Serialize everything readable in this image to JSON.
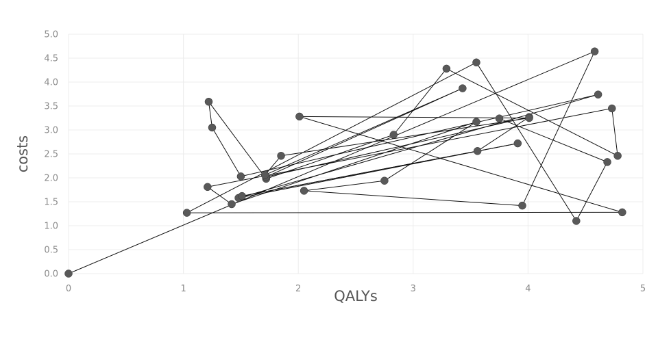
{
  "chart_data": {
    "type": "scatter",
    "title": "",
    "xlabel": "QALYs",
    "ylabel": "costs",
    "xlim": [
      0,
      5
    ],
    "ylim": [
      0,
      5
    ],
    "x_ticks": [
      "0",
      "1",
      "2",
      "3",
      "4",
      "5"
    ],
    "y_ticks": [
      "0.0",
      "0.5",
      "1.0",
      "1.5",
      "2.0",
      "2.5",
      "3.0",
      "3.5",
      "4.0",
      "4.5",
      "5.0"
    ],
    "grid": true,
    "connected_in_order": true,
    "series": [
      {
        "points": [
          {
            "x": 0.0,
            "y": 0.0
          },
          {
            "x": 4.58,
            "y": 4.64
          },
          {
            "x": 3.95,
            "y": 1.42
          },
          {
            "x": 2.05,
            "y": 1.73
          },
          {
            "x": 2.75,
            "y": 1.94
          },
          {
            "x": 3.55,
            "y": 3.17
          },
          {
            "x": 1.42,
            "y": 1.45
          },
          {
            "x": 1.21,
            "y": 1.81
          },
          {
            "x": 4.73,
            "y": 3.45
          },
          {
            "x": 4.78,
            "y": 2.46
          },
          {
            "x": 3.29,
            "y": 4.28
          },
          {
            "x": 2.83,
            "y": 2.9
          },
          {
            "x": 1.72,
            "y": 1.98
          },
          {
            "x": 1.22,
            "y": 3.59
          },
          {
            "x": 1.25,
            "y": 3.05
          },
          {
            "x": 1.5,
            "y": 2.03
          },
          {
            "x": 4.61,
            "y": 3.74
          },
          {
            "x": 1.48,
            "y": 1.58
          },
          {
            "x": 3.91,
            "y": 2.72
          },
          {
            "x": 1.51,
            "y": 1.62
          },
          {
            "x": 3.56,
            "y": 2.56
          },
          {
            "x": 4.01,
            "y": 3.27
          },
          {
            "x": 1.72,
            "y": 2.02
          },
          {
            "x": 3.43,
            "y": 3.87
          },
          {
            "x": 1.71,
            "y": 2.06
          },
          {
            "x": 1.85,
            "y": 2.46
          },
          {
            "x": 4.01,
            "y": 3.25
          },
          {
            "x": 2.01,
            "y": 3.28
          },
          {
            "x": 4.82,
            "y": 1.28
          },
          {
            "x": 1.03,
            "y": 1.27
          },
          {
            "x": 3.55,
            "y": 4.41
          },
          {
            "x": 4.42,
            "y": 1.1
          },
          {
            "x": 4.69,
            "y": 2.33
          },
          {
            "x": 3.75,
            "y": 3.24
          }
        ]
      }
    ]
  },
  "colors": {
    "point": "#595959",
    "line": "#111111",
    "grid": "#ececec"
  }
}
